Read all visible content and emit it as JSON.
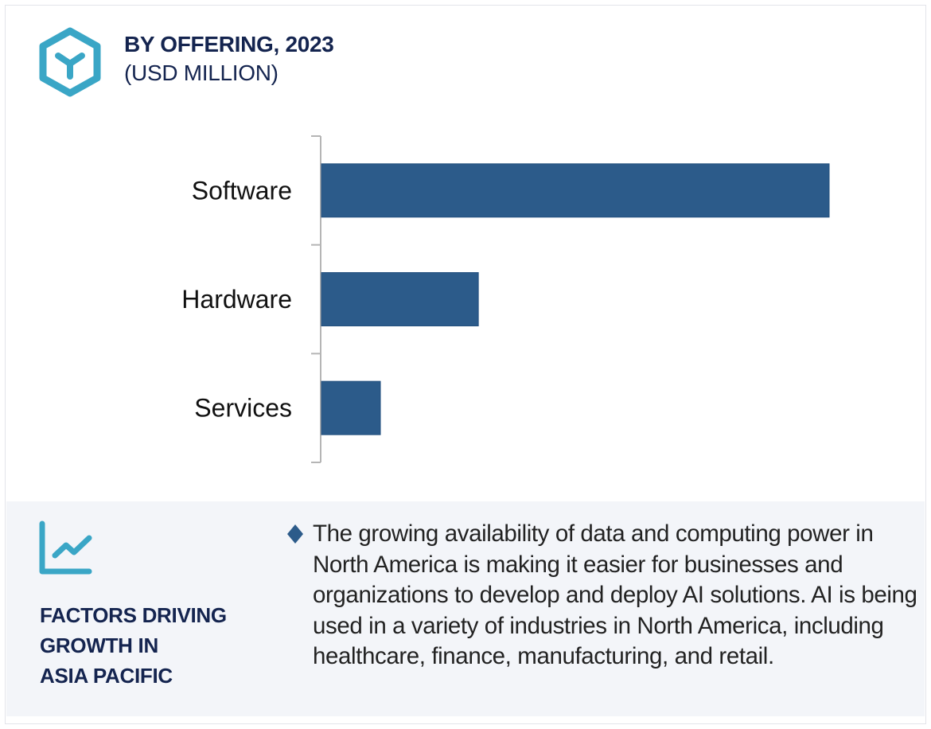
{
  "header": {
    "title": "BY OFFERING, 2023",
    "subtitle": "(USD MILLION)",
    "icon": "hexagon-y-icon"
  },
  "colors": {
    "bar": "#2c5b8a",
    "accent": "#3aa6c6",
    "heading": "#14244f",
    "panel_bg": "#f3f5f9",
    "axis": "#b5b5b5"
  },
  "chart_data": {
    "type": "bar",
    "orientation": "horizontal",
    "title": "BY OFFERING, 2023",
    "subtitle": "(USD MILLION)",
    "categories": [
      "Software",
      "Hardware",
      "Services"
    ],
    "values": [
      100,
      30.9,
      11.6
    ],
    "value_note": "relative values estimated from bar lengths (no numeric labels shown)",
    "xlabel": "",
    "ylabel": "",
    "xlim": [
      0,
      100
    ],
    "grid": false,
    "legend": "none"
  },
  "factors": {
    "icon": "trend-chart-icon",
    "heading_lines": [
      "FACTORS DRIVING",
      "GROWTH IN",
      "ASIA PACIFIC"
    ],
    "bullet_icon": "diamond-bullet-icon",
    "text": "The growing availability of data and computing power in North America is making it easier for businesses and organizations to develop and deploy AI solutions. AI is being used in a variety of industries in North America, including healthcare, finance, manufacturing, and retail."
  }
}
